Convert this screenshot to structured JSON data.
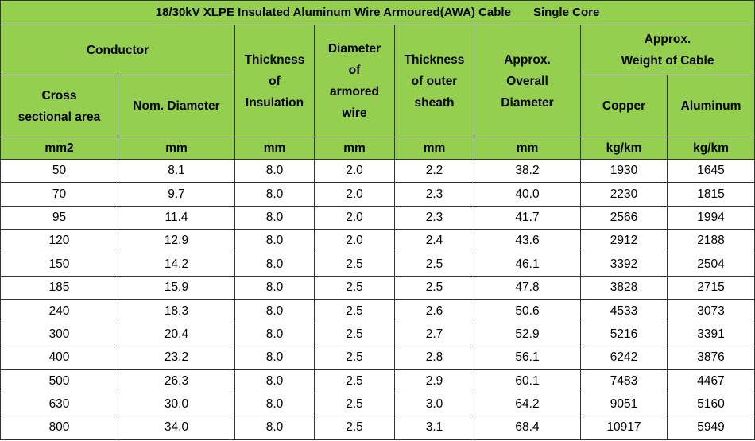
{
  "title": {
    "main": "18/30kV XLPE Insulated Aluminum Wire Armoured(AWA) Cable",
    "sub": "Single Core"
  },
  "headers": {
    "conductor": "Conductor",
    "cross_line1": "Cross",
    "cross_line2": "sectional area",
    "nom_diameter": "Nom. Diameter",
    "insulation_line1": "Thickness",
    "insulation_line2": "of",
    "insulation_line3": "Insulation",
    "armored_line1": "Diameter",
    "armored_line2": "of",
    "armored_line3": "armored",
    "armored_line4": "wire",
    "outer_line1": "Thickness",
    "outer_line2": "of outer",
    "outer_line3": "sheath",
    "overall_line1": "Approx.",
    "overall_line2": "Overall",
    "overall_line3": "Diameter",
    "weight_line1": "Approx.",
    "weight_line2": "Weight of Cable",
    "copper": "Copper",
    "aluminum": "Aluminum"
  },
  "units": [
    "mm2",
    "mm",
    "mm",
    "mm",
    "mm",
    "mm",
    "kg/km",
    "kg/km"
  ],
  "rows": [
    [
      "50",
      "8.1",
      "8.0",
      "2.0",
      "2.2",
      "38.2",
      "1930",
      "1645"
    ],
    [
      "70",
      "9.7",
      "8.0",
      "2.0",
      "2.3",
      "40.0",
      "2230",
      "1815"
    ],
    [
      "95",
      "11.4",
      "8.0",
      "2.0",
      "2.3",
      "41.7",
      "2566",
      "1994"
    ],
    [
      "120",
      "12.9",
      "8.0",
      "2.0",
      "2.4",
      "43.6",
      "2912",
      "2188"
    ],
    [
      "150",
      "14.2",
      "8.0",
      "2.5",
      "2.5",
      "46.1",
      "3392",
      "2504"
    ],
    [
      "185",
      "15.9",
      "8.0",
      "2.5",
      "2.5",
      "47.8",
      "3828",
      "2715"
    ],
    [
      "240",
      "18.3",
      "8.0",
      "2.5",
      "2.6",
      "50.6",
      "4533",
      "3073"
    ],
    [
      "300",
      "20.4",
      "8.0",
      "2.5",
      "2.7",
      "52.9",
      "5216",
      "3391"
    ],
    [
      "400",
      "23.2",
      "8.0",
      "2.5",
      "2.8",
      "56.1",
      "6242",
      "3876"
    ],
    [
      "500",
      "26.3",
      "8.0",
      "2.5",
      "2.9",
      "60.1",
      "7483",
      "4467"
    ],
    [
      "630",
      "30.0",
      "8.0",
      "2.5",
      "3.0",
      "64.2",
      "9051",
      "5160"
    ],
    [
      "800",
      "34.0",
      "8.0",
      "2.5",
      "3.1",
      "68.4",
      "10917",
      "5949"
    ]
  ],
  "colors": {
    "header_bg": "#94cf50",
    "border": "#333333"
  }
}
